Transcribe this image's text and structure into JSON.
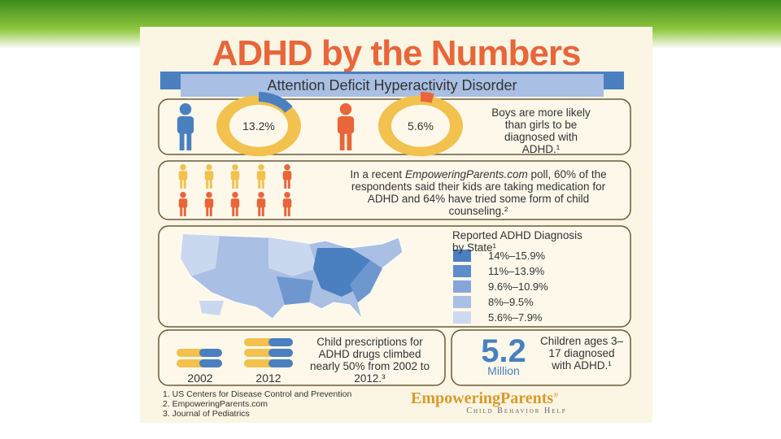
{
  "header": {
    "title": "ADHD by the Numbers",
    "subtitle": "Attention Deficit Hyperactivity Disorder"
  },
  "gender": {
    "boys": "13.2%",
    "girls": "5.6%",
    "note": "Boys are more likely than girls to be diagnosed with ADHD.¹"
  },
  "poll": {
    "before": "In a recent ",
    "brand": "EmpoweringParents.com",
    "after": " poll, 60% of the respondents said their kids are taking medication for ADHD and 64% have tried some form of child counseling.²"
  },
  "map": {
    "legend_title": "Reported ADHD Diagnosis by State¹",
    "legend": [
      "14%–15.9%",
      "11%–13.9%",
      "9.6%–10.9%",
      "8%–9.5%",
      "5.6%–7.9%"
    ]
  },
  "prescriptions": {
    "years": [
      "2002",
      "2012"
    ],
    "text": "Child prescriptions for ADHD drugs climbed nearly 50% from 2002 to 2012.³"
  },
  "children": {
    "value": "5.2",
    "unit": "Million",
    "text": "Children ages 3–17 diagnosed with ADHD.¹"
  },
  "footnotes": [
    "1. US Centers for Disease Control and Prevention",
    "2. EmpoweringParents.com",
    "3. Journal of Pediatrics"
  ],
  "logo": {
    "name": "EmpoweringParents",
    "mark": "®",
    "tagline": "Child Behavior Help"
  }
}
